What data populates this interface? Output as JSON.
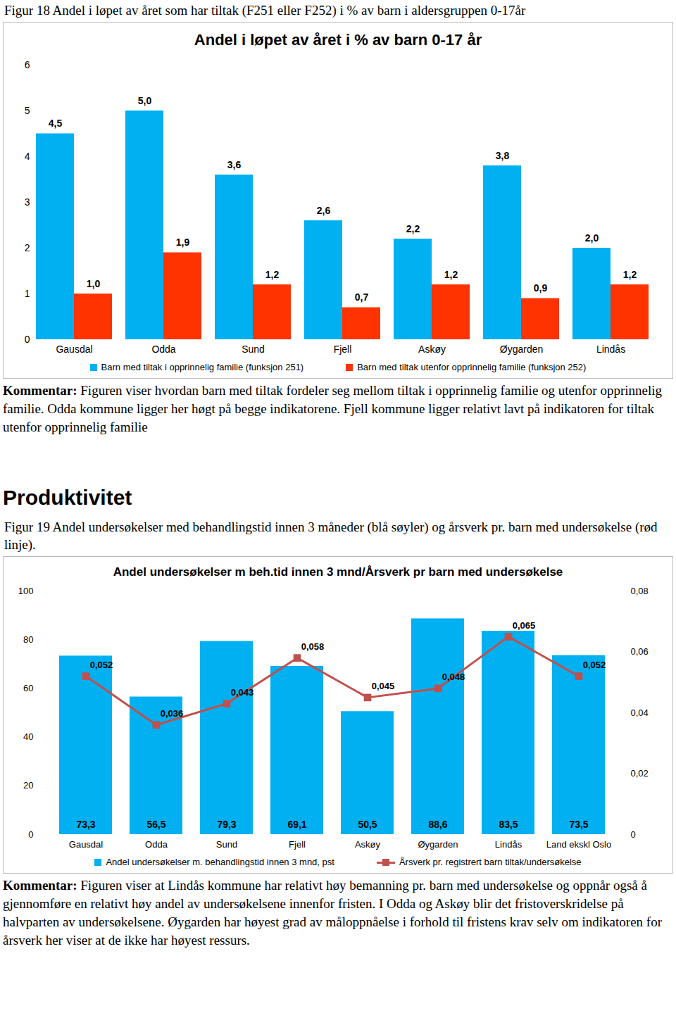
{
  "document": {
    "figure_18_caption": "Figur 18 Andel i løpet av året som har tiltak (F251 eller F252) i % av barn i aldersgruppen 0-17år",
    "comment_label": "Kommentar:",
    "comment_18": "Figuren viser hvordan barn med tiltak fordeler seg mellom tiltak i opprinnelig familie og utenfor opprinnelig familie. Odda kommune ligger her høgt på begge indikatorene. Fjell kommune ligger relativt lavt på indikatoren for tiltak utenfor opprinnelig familie",
    "heading": "Produktivitet",
    "figure_19_caption": "Figur 19 Andel undersøkelser med behandlingstid innen 3 måneder (blå søyler) og årsverk pr. barn med undersøkelse (rød linje).",
    "comment_19": "Figuren viser at Lindås kommune har relativt høy bemanning pr. barn med undersøkelse og oppnår også å gjennomføre en relativt høy andel av undersøkelsene innenfor fristen. I Odda og Askøy blir det fristoverskridelse på halvparten av undersøkelsene. Øygarden har høyest grad av måloppnåelse i forhold til fristens krav selv om indikatoren for årsverk her viser at de ikke har høyest ressurs."
  },
  "chart_data": [
    {
      "type": "bar",
      "title": "Andel i løpet av året i % av barn 0-17 år",
      "categories": [
        "Gausdal",
        "Odda",
        "Sund",
        "Fjell",
        "Askøy",
        "Øygarden",
        "Lindås"
      ],
      "ylim": [
        0,
        6
      ],
      "yticks": [
        0,
        1,
        2,
        3,
        4,
        5,
        6
      ],
      "grid": false,
      "data_labels": true,
      "legend": "bottom",
      "series": [
        {
          "name": "Barn med tiltak i opprinnelig familie (funksjon 251)",
          "color": "#00B0F0",
          "values": [
            4.5,
            5.0,
            3.6,
            2.6,
            2.2,
            3.8,
            2.0
          ],
          "value_labels": [
            "4,5",
            "5,0",
            "3,6",
            "2,6",
            "2,2",
            "3,8",
            "2,0"
          ]
        },
        {
          "name": "Barn med tiltak utenfor opprinnelig familie (funksjon 252)",
          "color": "#FF3300",
          "values": [
            1.0,
            1.9,
            1.2,
            0.7,
            1.2,
            0.9,
            1.2
          ],
          "value_labels": [
            "1,0",
            "1,9",
            "1,2",
            "0,7",
            "1,2",
            "0,9",
            "1,2"
          ]
        }
      ]
    },
    {
      "type": "bar",
      "title": "Andel undersøkelser m beh.tid innen 3 mnd/Årsverk pr barn med undersøkelse",
      "categories": [
        "Gausdal",
        "Odda",
        "Sund",
        "Fjell",
        "Askøy",
        "Øygarden",
        "Lindås",
        "Land ekskl Oslo"
      ],
      "ylim": [
        0,
        100
      ],
      "yticks": [
        0,
        20,
        40,
        60,
        80,
        100
      ],
      "y2lim": [
        0,
        0.08
      ],
      "y2ticks": [
        0,
        {
          "value": 0.02,
          "label": "0,02"
        },
        {
          "value": 0.04,
          "label": "0,04"
        },
        {
          "value": 0.06,
          "label": "0,06"
        },
        {
          "value": 0.08,
          "label": "0,08"
        }
      ],
      "grid": false,
      "data_labels": true,
      "legend": "bottom",
      "series": [
        {
          "name": "Andel undersøkelser m. behandlingstid innen 3 mnd, pst",
          "type": "bar",
          "color": "#00B0F0",
          "values": [
            73.3,
            56.5,
            79.3,
            69.1,
            50.5,
            88.6,
            83.5,
            73.5
          ],
          "value_labels": [
            "73,3",
            "56,5",
            "79,3",
            "69,1",
            "50,5",
            "88,6",
            "83,5",
            "73,5"
          ]
        },
        {
          "name": "Årsverk pr. registrert barn tiltak/undersøkelse",
          "type": "line",
          "axis": "y2",
          "color": "#C0504D",
          "marker": "square",
          "values": [
            0.052,
            0.036,
            0.043,
            0.058,
            0.045,
            0.048,
            0.065,
            0.052
          ],
          "value_labels": [
            "0,052",
            "0,036",
            "0,043",
            "0,058",
            "0,045",
            "0,048",
            "0,065",
            "0,052"
          ]
        }
      ]
    }
  ]
}
